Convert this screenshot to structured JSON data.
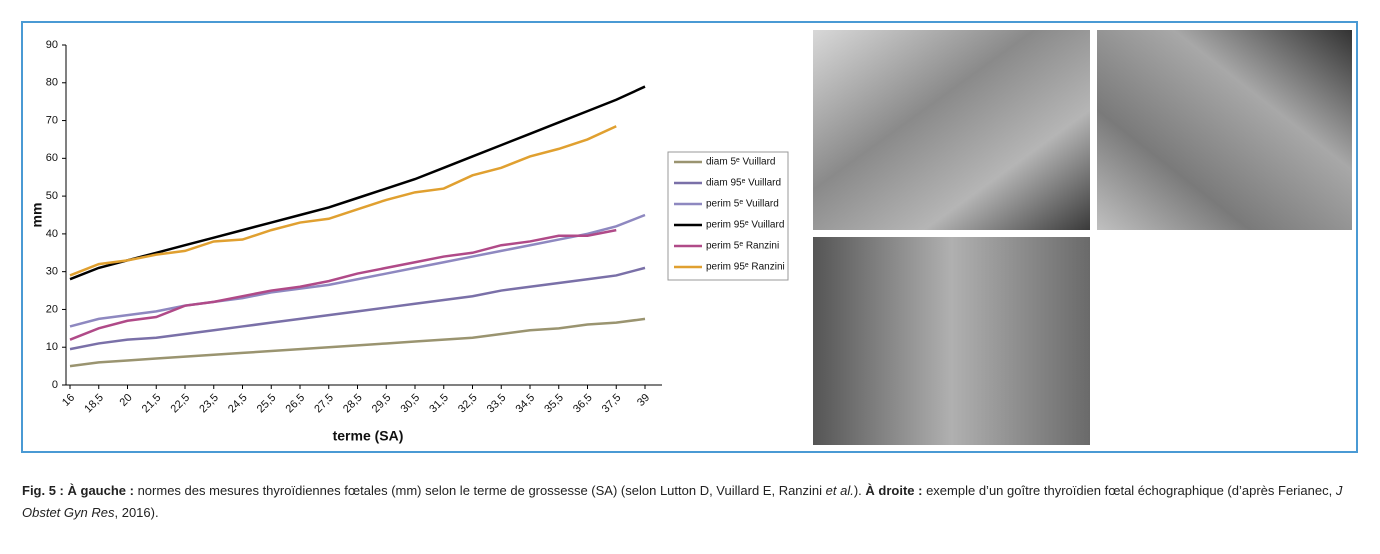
{
  "chart_data": {
    "type": "line",
    "ylabel": "mm",
    "xlabel": "terme (SA)",
    "categories": [
      "16",
      "18,5",
      "20",
      "21,5",
      "22,5",
      "23,5",
      "24,5",
      "25,5",
      "26,5",
      "27,5",
      "28,5",
      "29,5",
      "30,5",
      "31,5",
      "32,5",
      "33,5",
      "34,5",
      "35,5",
      "36,5",
      "37,5",
      "39"
    ],
    "ylim": [
      0,
      90
    ],
    "yticks": [
      0,
      10,
      20,
      30,
      40,
      50,
      60,
      70,
      80,
      90
    ],
    "series": [
      {
        "name": "diam 5ᵉ Vuillard",
        "color": "#9a9470",
        "values": [
          5,
          6,
          6.5,
          7,
          7.5,
          8,
          8.5,
          9,
          9.5,
          10,
          10.5,
          11,
          11.5,
          12,
          12.5,
          13.5,
          14.5,
          15,
          16,
          16.5,
          17.5
        ]
      },
      {
        "name": "diam 95ᵉ Vuillard",
        "color": "#7a70a8",
        "values": [
          9.5,
          11,
          12,
          12.5,
          13.5,
          14.5,
          15.5,
          16.5,
          17.5,
          18.5,
          19.5,
          20.5,
          21.5,
          22.5,
          23.5,
          25,
          26,
          27,
          28,
          29,
          31
        ]
      },
      {
        "name": "perim 5ᵉ Vuillard",
        "color": "#8e88c0",
        "values": [
          15.5,
          17.5,
          18.5,
          19.5,
          21,
          22,
          23,
          24.5,
          25.5,
          26.5,
          28,
          29.5,
          31,
          32.5,
          34,
          35.5,
          37,
          38.5,
          40,
          42,
          45
        ]
      },
      {
        "name": "perim 95ᵉ Vuillard",
        "color": "#000000",
        "values": [
          28,
          31,
          33,
          35,
          37,
          39,
          41,
          43,
          45,
          47,
          49.5,
          52,
          54.5,
          57.5,
          60.5,
          63.5,
          66.5,
          69.5,
          72.5,
          75.5,
          79
        ]
      },
      {
        "name": "perim 5ᵉ Ranzini",
        "color": "#b04a88",
        "values": [
          12,
          15,
          17,
          18,
          21,
          22,
          23.5,
          25,
          26,
          27.5,
          29.5,
          31,
          32.5,
          34,
          35,
          37,
          38,
          39.5,
          39.5,
          41,
          null
        ]
      },
      {
        "name": "perim 95ᵉ Ranzini",
        "color": "#e0a030",
        "values": [
          29,
          32,
          33,
          34.5,
          35.5,
          38,
          38.5,
          41,
          43,
          44,
          46.5,
          49,
          51,
          52,
          55.5,
          57.5,
          60.5,
          62.5,
          65,
          68.5,
          null
        ]
      }
    ]
  },
  "caption": {
    "parts": [
      "Fig. 5 : À gauche :",
      " normes des mesures thyroïdiennes fœtales (mm) selon le terme de grossesse (SA) (selon Lutton D, Vuillard E, Ranzini ",
      "et al.",
      "). ",
      "À droite :",
      " exemple d’un goître thyroïdien fœtal échographique (d’après Ferianec, ",
      "J Obstet Gyn Res",
      ", 2016)."
    ]
  }
}
